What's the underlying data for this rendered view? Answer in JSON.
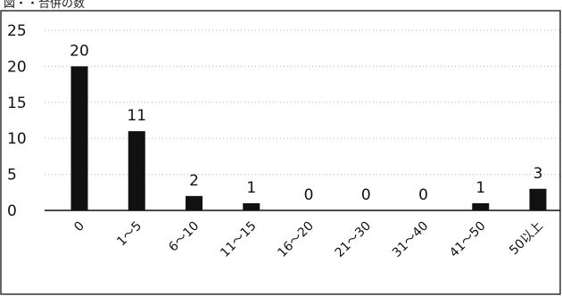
{
  "title": "図・・合併の数",
  "chart_data": {
    "type": "bar",
    "title": "",
    "xlabel": "",
    "ylabel": "",
    "categories": [
      "0",
      "1〜5",
      "6〜10",
      "11〜15",
      "16〜20",
      "21〜30",
      "31〜40",
      "41〜50",
      "50以上"
    ],
    "values": [
      20,
      11,
      2,
      1,
      0,
      0,
      0,
      1,
      3
    ],
    "data_labels": [
      "20",
      "11",
      "2",
      "1",
      "0",
      "0",
      "0",
      "1",
      "3"
    ],
    "yticks": [
      0,
      5,
      10,
      15,
      20,
      25
    ],
    "ytick_labels": [
      "0",
      "5",
      "10",
      "15",
      "20",
      "25"
    ],
    "ylim": [
      0,
      25
    ],
    "grid": true,
    "legend": "none",
    "bar_color": "#111111"
  }
}
